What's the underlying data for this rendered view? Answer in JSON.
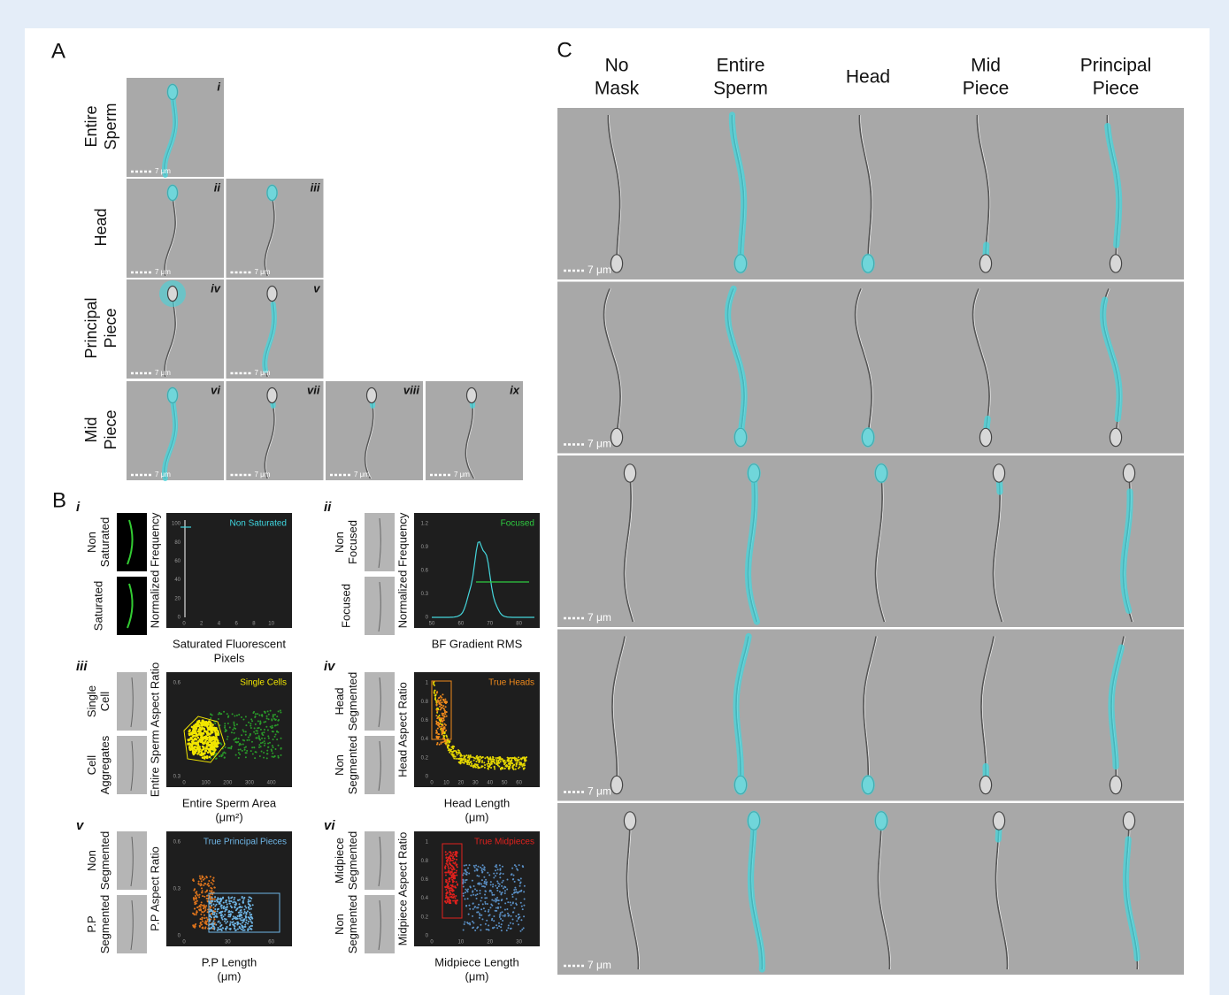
{
  "panel_a": {
    "label": "A",
    "scale_bar": "7 μm",
    "rows": [
      {
        "label": [
          "Entire",
          "Sperm"
        ],
        "tiles": [
          "i"
        ]
      },
      {
        "label": [
          "Head"
        ],
        "tiles": [
          "ii",
          "iii"
        ]
      },
      {
        "label": [
          "Principal",
          "Piece"
        ],
        "tiles": [
          "iv",
          "v"
        ]
      },
      {
        "label": [
          "Mid",
          "Piece"
        ],
        "tiles": [
          "vi",
          "vii",
          "viii",
          "ix"
        ]
      }
    ]
  },
  "panel_b": {
    "label": "B",
    "plots": [
      {
        "numeral": "i",
        "image_labels": [
          [
            "Non",
            "Saturated"
          ],
          [
            "Saturated"
          ]
        ],
        "gate": "Non Saturated",
        "gate_color": "#3fd6e0",
        "y_label": "Normalized Frequency",
        "x_label": [
          "Saturated Fluorescent",
          "Pixels"
        ],
        "yticks": [
          0,
          20,
          40,
          60,
          80,
          100
        ],
        "xticks": [
          0,
          2,
          4,
          6,
          8,
          10
        ]
      },
      {
        "numeral": "ii",
        "image_labels": [
          [
            "Non",
            "Focused"
          ],
          [
            "Focused"
          ]
        ],
        "gate": "Focused",
        "gate_color": "#2ecc40",
        "y_label": "Normalized Frequency",
        "x_label": [
          "BF Gradient RMS"
        ],
        "yticks": [
          0,
          0.3,
          0.6,
          0.9,
          1.2
        ],
        "xticks": [
          50,
          60,
          70,
          80
        ]
      },
      {
        "numeral": "iii",
        "image_labels": [
          [
            "Single",
            "Cell"
          ],
          [
            "Cell",
            "Aggregates"
          ]
        ],
        "gate": "Single Cells",
        "gate_color": "#f2e600",
        "y_label": "Entire Sperm Aspect Ratio",
        "x_label": [
          "Entire Sperm Area",
          "(μm²)"
        ],
        "yticks": [
          0.3,
          0.6
        ],
        "xticks": [
          0,
          100,
          200,
          300,
          400
        ]
      },
      {
        "numeral": "iv",
        "image_labels": [
          [
            "Head",
            "Segmented"
          ],
          [
            "Non",
            "Segmented"
          ]
        ],
        "gate": "True Heads",
        "gate_color": "#f08a1c",
        "y_label": "Head Aspect Ratio",
        "x_label": [
          "Head Length",
          "(μm)"
        ],
        "yticks": [
          0,
          0.2,
          0.4,
          0.6,
          0.8,
          1
        ],
        "xticks": [
          0,
          10,
          20,
          30,
          40,
          50,
          60
        ]
      },
      {
        "numeral": "v",
        "image_labels": [
          [
            "Non",
            "Segmented"
          ],
          [
            "P.P",
            "Segmented"
          ]
        ],
        "gate": "True Principal Pieces",
        "gate_color": "#6fb6e6",
        "y_label": "P.P Aspect Ratio",
        "x_label": [
          "P.P Length",
          "(μm)"
        ],
        "yticks": [
          0,
          0.3,
          0.6
        ],
        "xticks": [
          0,
          30,
          60
        ]
      },
      {
        "numeral": "vi",
        "image_labels": [
          [
            "Midpiece",
            "Segmented"
          ],
          [
            "Non",
            "Segmented"
          ]
        ],
        "gate": "True Midpieces",
        "gate_color": "#e0211d",
        "y_label": "Midpiece Aspect Ratio",
        "x_label": [
          "Midpiece Length",
          "(μm)"
        ],
        "yticks": [
          0,
          0.2,
          0.4,
          0.6,
          0.8,
          1
        ],
        "xticks": [
          0,
          10,
          20,
          30
        ]
      }
    ]
  },
  "panel_c": {
    "label": "C",
    "columns": [
      [
        "No",
        "Mask"
      ],
      [
        "Entire",
        "Sperm"
      ],
      [
        "Head"
      ],
      [
        "Mid",
        "Piece"
      ],
      [
        "Principal",
        "Piece"
      ]
    ],
    "row_scale_bars": [
      "7 μm",
      "7 μm",
      "7 μm",
      "7 μm",
      "7 μm"
    ]
  }
}
